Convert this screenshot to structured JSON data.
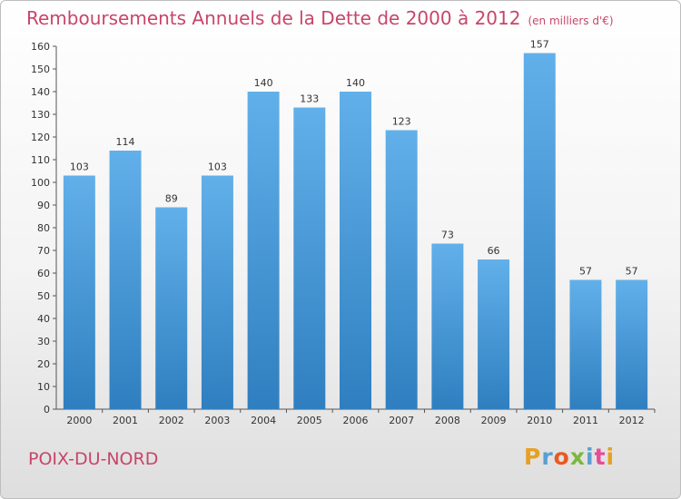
{
  "page": {
    "title": "Remboursements Annuels de la Dette de 2000 à 2012",
    "unit_note": "(en milliers d'€)",
    "city": "POIX-DU-NORD",
    "logo": "Proxiti",
    "logo_colors": [
      "#e8a021",
      "#5aa0d0",
      "#e85a21",
      "#7ab83a",
      "#5aa0d0",
      "#e84a9a",
      "#e8a021"
    ]
  },
  "chart_data": {
    "type": "bar",
    "title": "Remboursements Annuels de la Dette de 2000 à 2012",
    "xlabel": "",
    "ylabel": "",
    "categories": [
      "2000",
      "2001",
      "2002",
      "2003",
      "2004",
      "2005",
      "2006",
      "2007",
      "2008",
      "2009",
      "2010",
      "2011",
      "2012"
    ],
    "values": [
      103,
      114,
      89,
      103,
      140,
      133,
      140,
      123,
      73,
      66,
      157,
      57,
      57
    ],
    "ylim": [
      0,
      160
    ],
    "ytick_step": 10,
    "grid": false,
    "bar_color_top": "#62b0ea",
    "bar_color_bottom": "#2f7fc0"
  }
}
